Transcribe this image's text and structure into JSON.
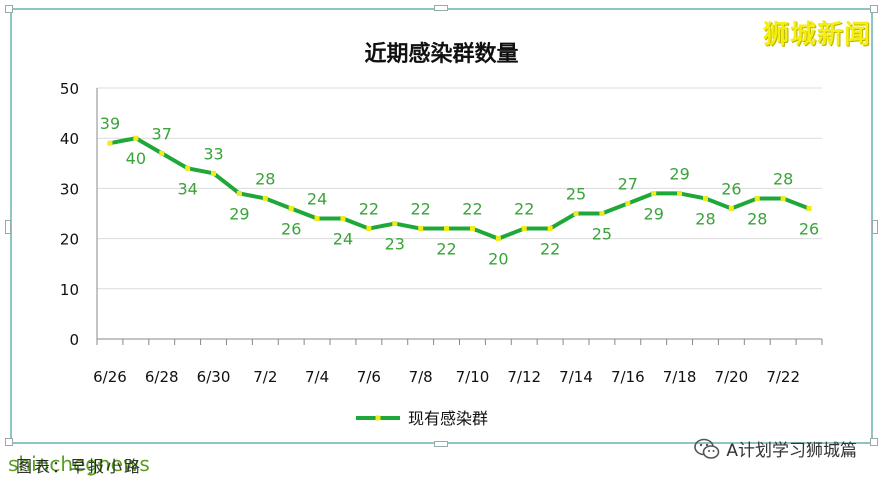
{
  "watermark_top": "狮城新闻",
  "footer_left": "shinchegnews",
  "footer_left_overlay": "图表：早报小路",
  "footer_right": "A计划学习狮城篇",
  "colors": {
    "line": "#1fa83a",
    "marker": "#f2ea1a",
    "label": "#3aa33a",
    "frame": "#8ec4c2"
  },
  "chart_data": {
    "type": "line",
    "title": "近期感染群数量",
    "xlabel": "",
    "ylabel": "",
    "ylim": [
      0,
      50
    ],
    "yticks": [
      0,
      10,
      20,
      30,
      40,
      50
    ],
    "x": [
      "6/26",
      "6/27",
      "6/28",
      "6/29",
      "6/30",
      "7/1",
      "7/2",
      "7/3",
      "7/4",
      "7/5",
      "7/6",
      "7/7",
      "7/8",
      "7/9",
      "7/10",
      "7/11",
      "7/12",
      "7/13",
      "7/14",
      "7/15",
      "7/16",
      "7/17",
      "7/18",
      "7/19",
      "7/20",
      "7/21",
      "7/22",
      "7/23"
    ],
    "xtick_labels": [
      "6/26",
      "6/28",
      "6/30",
      "7/2",
      "7/4",
      "7/6",
      "7/8",
      "7/10",
      "7/12",
      "7/14",
      "7/16",
      "7/18",
      "7/20",
      "7/22"
    ],
    "series": [
      {
        "name": "现有感染群",
        "values": [
          39,
          40,
          37,
          34,
          33,
          29,
          28,
          26,
          24,
          24,
          22,
          23,
          22,
          22,
          22,
          20,
          22,
          22,
          25,
          25,
          27,
          29,
          29,
          28,
          26,
          28,
          28,
          26
        ]
      }
    ],
    "grid": true,
    "legend": "bottom"
  }
}
